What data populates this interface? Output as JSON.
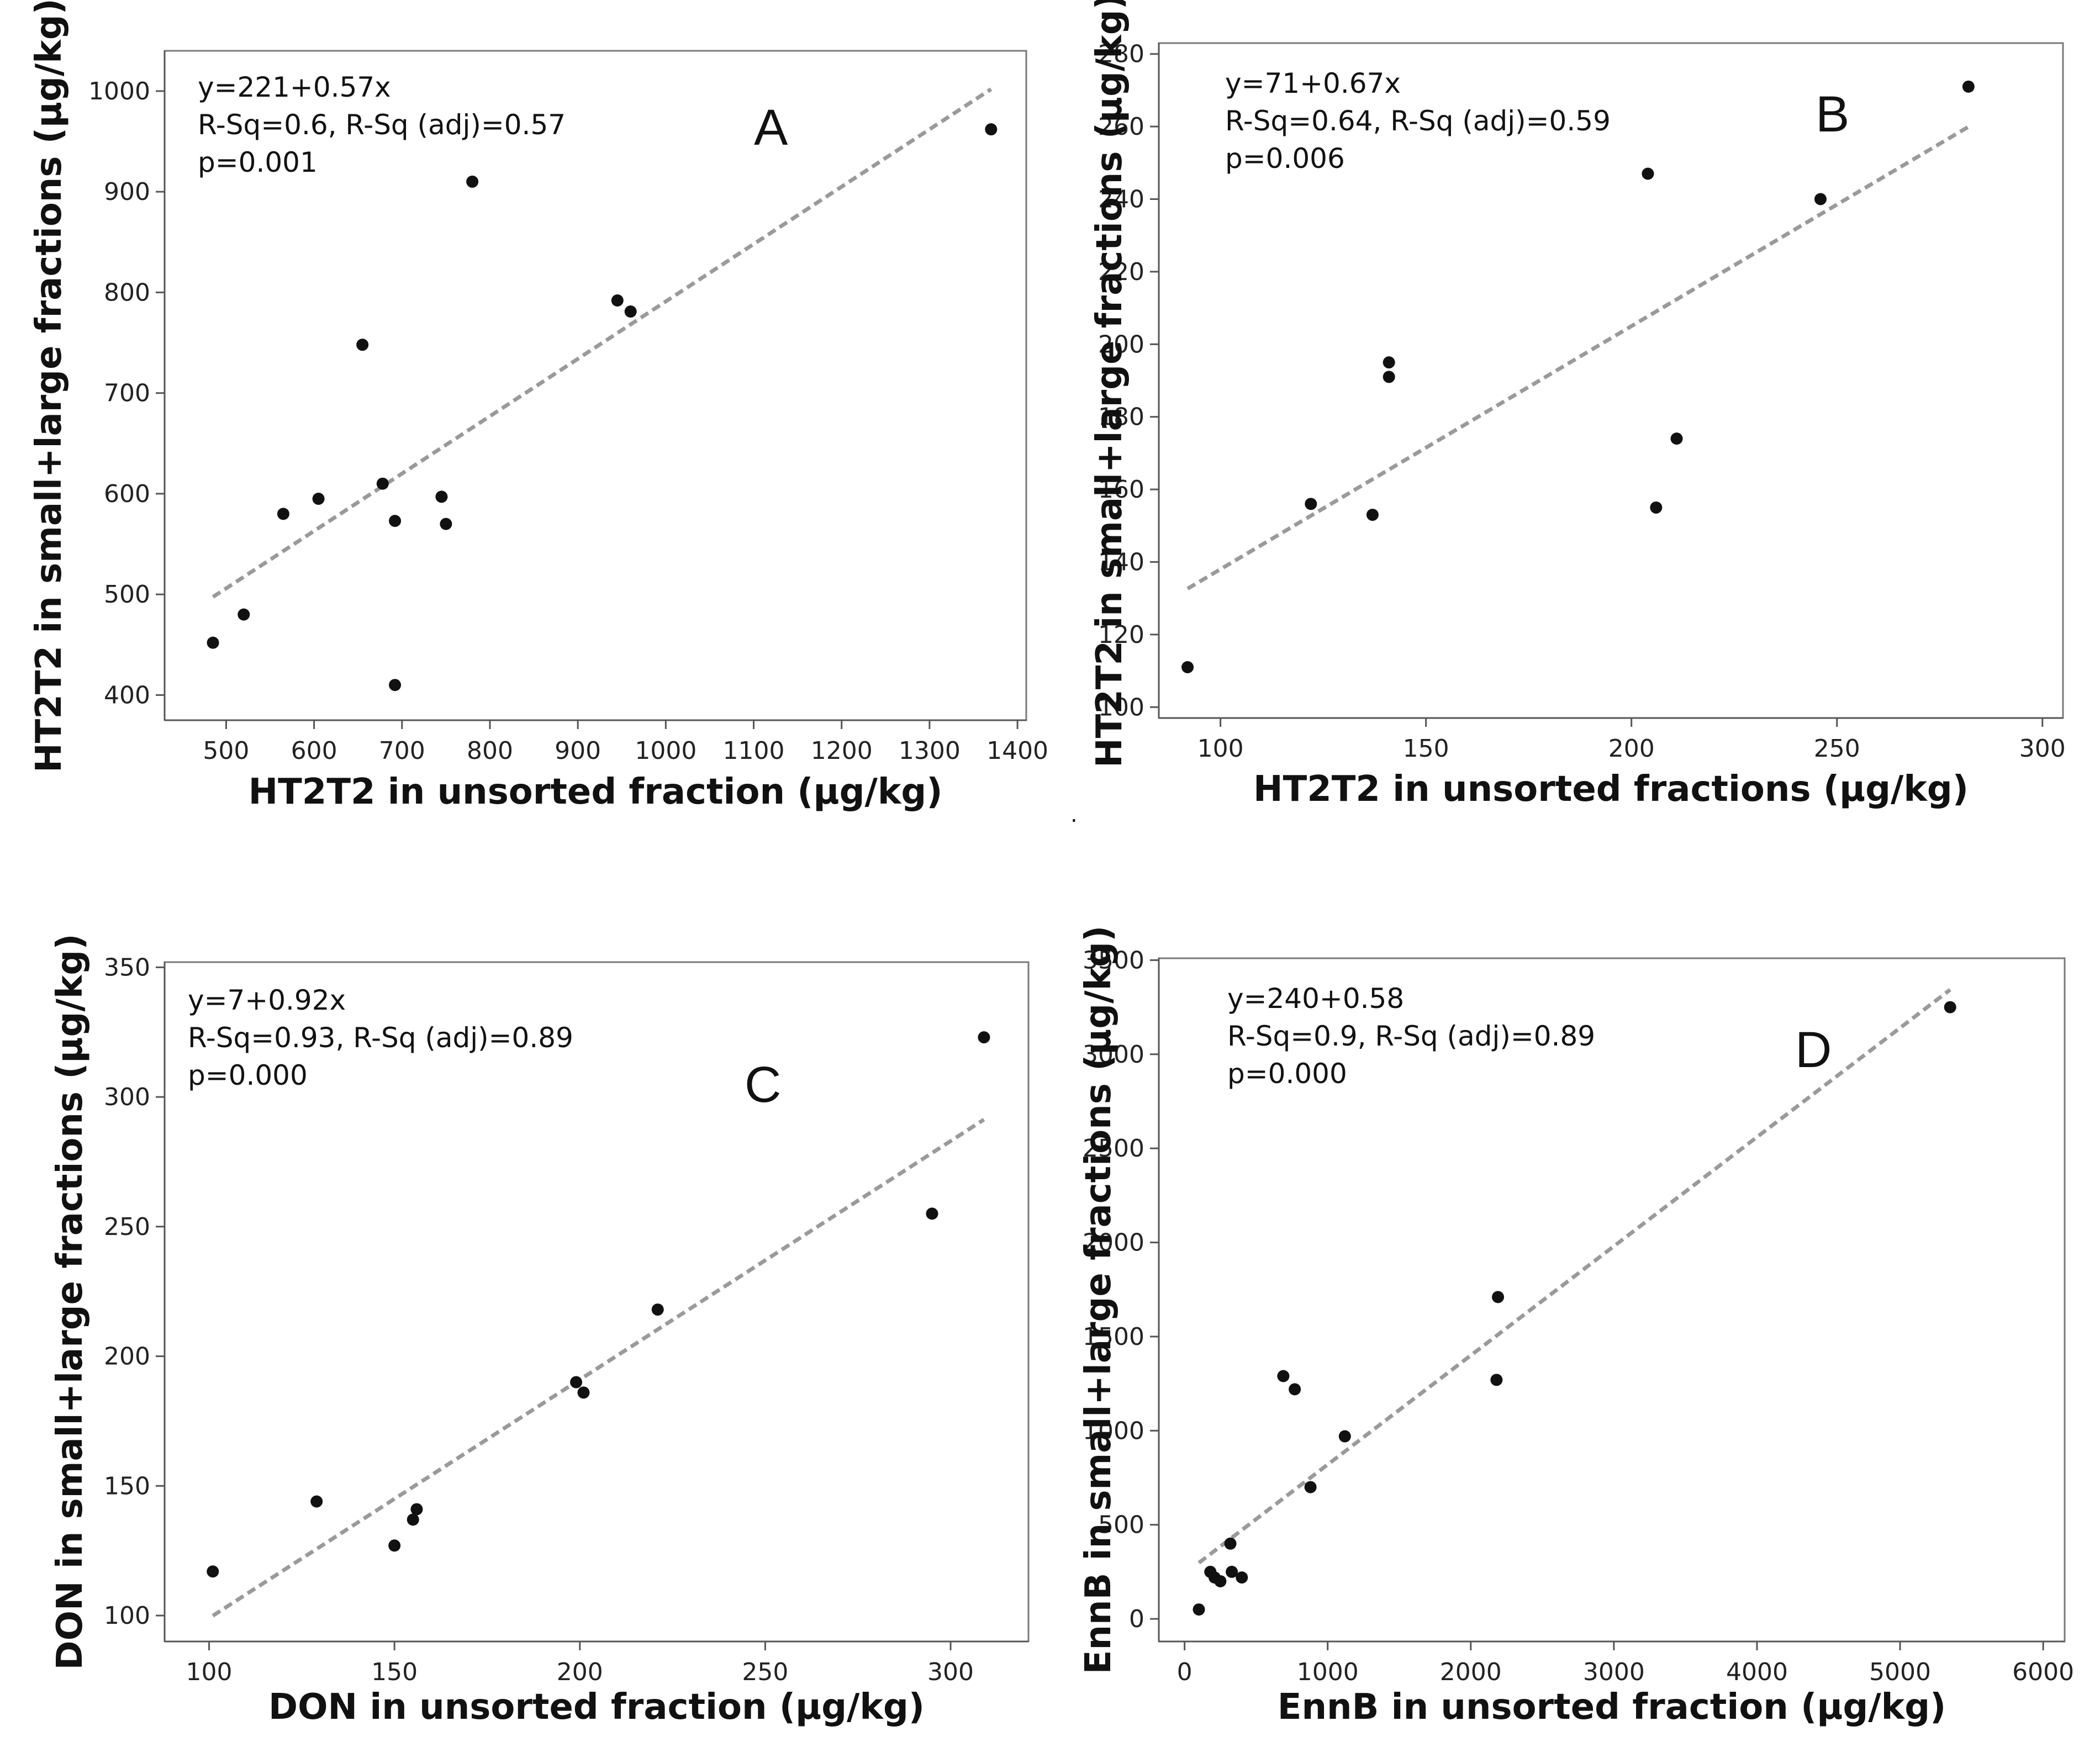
{
  "figure": {
    "separator_mark": "."
  },
  "chart_data": [
    {
      "type": "scatter",
      "panel_label": "A",
      "xlabel": "HT2T2 in unsorted fraction (µg/kg)",
      "ylabel": "HT2T2 in small+large fractions (µg/kg)",
      "annotation": [
        "y=221+0.57x",
        "R-Sq=0.6, R-Sq (adj)=0.57",
        "p=0.001"
      ],
      "xlim": [
        430,
        1410
      ],
      "ylim": [
        375,
        1040
      ],
      "xticks": [
        500,
        600,
        700,
        800,
        900,
        1000,
        1100,
        1200,
        1300,
        1400
      ],
      "yticks": [
        400,
        500,
        600,
        700,
        800,
        900,
        1000
      ],
      "x": [
        485,
        520,
        565,
        605,
        655,
        678,
        692,
        692,
        745,
        750,
        780,
        945,
        960,
        1370
      ],
      "y": [
        452,
        480,
        580,
        595,
        748,
        610,
        573,
        410,
        597,
        570,
        910,
        792,
        781,
        962
      ],
      "fit": {
        "intercept": 221,
        "slope": 0.57,
        "x_range": [
          485,
          1370
        ]
      }
    },
    {
      "type": "scatter",
      "panel_label": "B",
      "xlabel": "HT2T2 in unsorted fractions (µg/kg)",
      "ylabel": "HT2T2 in small+large fractions (µg/kg)",
      "annotation": [
        "y=71+0.67x",
        "R-Sq=0.64, R-Sq (adj)=0.59",
        "p=0.006"
      ],
      "xlim": [
        85,
        305
      ],
      "ylim": [
        97,
        283
      ],
      "xticks": [
        100,
        150,
        200,
        250,
        300
      ],
      "yticks": [
        100,
        120,
        140,
        160,
        180,
        200,
        220,
        240,
        260,
        280
      ],
      "x": [
        92,
        122,
        137,
        141,
        141,
        204,
        206,
        211,
        246,
        282
      ],
      "y": [
        111,
        156,
        153,
        195,
        191,
        247,
        155,
        174,
        240,
        271
      ],
      "fit": {
        "intercept": 71,
        "slope": 0.67,
        "x_range": [
          92,
          282
        ]
      }
    },
    {
      "type": "scatter",
      "panel_label": "C",
      "xlabel": "DON in unsorted fraction (µg/kg)",
      "ylabel": "DON in small+large fractions (µg/kg)",
      "annotation": [
        "y=7+0.92x",
        "R-Sq=0.93, R-Sq (adj)=0.89",
        "p=0.000"
      ],
      "xlim": [
        88,
        321
      ],
      "ylim": [
        90,
        352
      ],
      "xticks": [
        100,
        150,
        200,
        250,
        300
      ],
      "yticks": [
        100,
        150,
        200,
        250,
        300,
        350
      ],
      "x": [
        101,
        129,
        150,
        155,
        156,
        199,
        201,
        221,
        295,
        309
      ],
      "y": [
        117,
        144,
        127,
        137,
        141,
        190,
        186,
        218,
        255,
        323
      ],
      "fit": {
        "intercept": 7,
        "slope": 0.92,
        "x_range": [
          101,
          309
        ]
      }
    },
    {
      "type": "scatter",
      "panel_label": "D",
      "xlabel": "EnnB in unsorted fraction (µg/kg)",
      "ylabel": "EnnB in small+large fractions (µg/kg)",
      "annotation": [
        "y=240+0.58",
        "R-Sq=0.9, R-Sq (adj)=0.89",
        "p=0.000"
      ],
      "xlim": [
        -180,
        6150
      ],
      "ylim": [
        -120,
        3510
      ],
      "xticks": [
        0,
        1000,
        2000,
        3000,
        4000,
        5000,
        6000
      ],
      "yticks": [
        0,
        500,
        1000,
        1500,
        2000,
        2500,
        3000,
        3500
      ],
      "x": [
        100,
        180,
        210,
        250,
        320,
        330,
        400,
        690,
        770,
        880,
        1120,
        2180,
        2190,
        5350
      ],
      "y": [
        50,
        250,
        220,
        200,
        400,
        250,
        220,
        1290,
        1220,
        700,
        970,
        1270,
        1710,
        3250
      ],
      "fit": {
        "intercept": 240,
        "slope": 0.58,
        "x_range": [
          100,
          5350
        ]
      }
    }
  ]
}
